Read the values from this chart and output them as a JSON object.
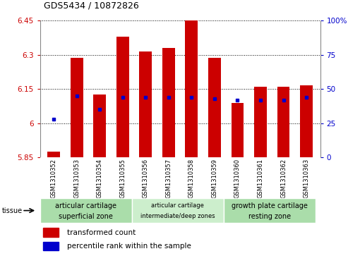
{
  "title": "GDS5434 / 10872826",
  "samples": [
    "GSM1310352",
    "GSM1310353",
    "GSM1310354",
    "GSM1310355",
    "GSM1310356",
    "GSM1310357",
    "GSM1310358",
    "GSM1310359",
    "GSM1310360",
    "GSM1310361",
    "GSM1310362",
    "GSM1310363"
  ],
  "red_values": [
    5.875,
    6.285,
    6.125,
    6.38,
    6.315,
    6.33,
    6.455,
    6.285,
    6.09,
    6.16,
    6.16,
    6.165
  ],
  "blue_values": [
    0.28,
    0.45,
    0.35,
    0.44,
    0.44,
    0.44,
    0.44,
    0.43,
    0.42,
    0.42,
    0.42,
    0.44
  ],
  "ymin": 5.85,
  "ymax": 6.45,
  "yticks": [
    5.85,
    6.0,
    6.15,
    6.3,
    6.45
  ],
  "ytick_labels": [
    "5.85",
    "6",
    "6.15",
    "6.3",
    "6.45"
  ],
  "right_yticks": [
    0,
    25,
    50,
    75,
    100
  ],
  "right_ytick_labels": [
    "0",
    "25",
    "50",
    "75",
    "100%"
  ],
  "bar_color": "#cc0000",
  "dot_color": "#0000cc",
  "base_value": 5.85,
  "tissue_groups": [
    {
      "label": "articular cartilage\nsuperficial zone",
      "start": 0,
      "end": 4
    },
    {
      "label": "articular cartilage\nintermediate/deep zones",
      "start": 4,
      "end": 8
    },
    {
      "label": "growth plate cartilage\nresting zone",
      "start": 8,
      "end": 12
    }
  ],
  "tissue_label": "tissue",
  "legend_red": "transformed count",
  "legend_blue": "percentile rank within the sample",
  "grid_color": "#000000",
  "tick_color_left": "#cc0000",
  "tick_color_right": "#0000cc",
  "bar_width": 0.55,
  "figure_bg": "#ffffff",
  "axes_bg": "#ffffff",
  "xticklabel_bg": "#cccccc",
  "tissue_colors": [
    "#aaddaa",
    "#cceecc",
    "#aaddaa"
  ],
  "tissue_fontsize_large": 7,
  "tissue_fontsize_small": 6
}
